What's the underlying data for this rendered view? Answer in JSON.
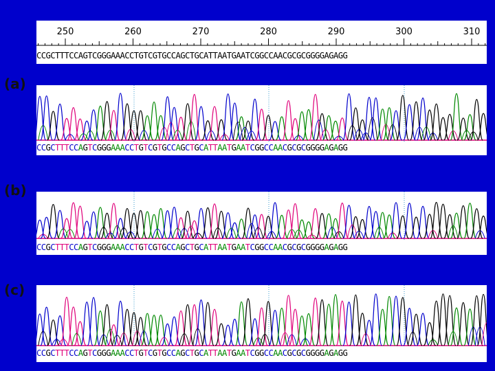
{
  "ruler": {
    "positions": [
      "250",
      "260",
      "270",
      "280",
      "290",
      "300",
      "310"
    ],
    "sequence": "CCGCTTTCCAGTCGGGAAACCTGTCGTGCCAGCTGCATTAATGAATCGGCCAACGCGCGGGGAGAGG"
  },
  "panels": [
    {
      "label": "(a)",
      "sequence": "CCGCTTTCCAGTCGGGAAACCTGTCGTGCCAGCTGCATTAATGAATCGGCCAACGCGCGGGGAGAGG"
    },
    {
      "label": "(b)",
      "sequence": "CCGCTTTCCAGTCGGGAAACCTGTCGTGCCAGCTGCATTAATGAATCGGCCAACGCGCGGGGAGAGG"
    },
    {
      "label": "(c)",
      "sequence": "CCGCTTTCCAGTCGGGAAACCTGTCGTGCCAGCTGCATTAATGAATCGGCCAACGCGCGGGGAGAGG"
    }
  ],
  "base_colors": {
    "A": "#008800",
    "C": "#0000cc",
    "G": "#000000",
    "T": "#e0007a"
  },
  "background_color": "#0000cc"
}
